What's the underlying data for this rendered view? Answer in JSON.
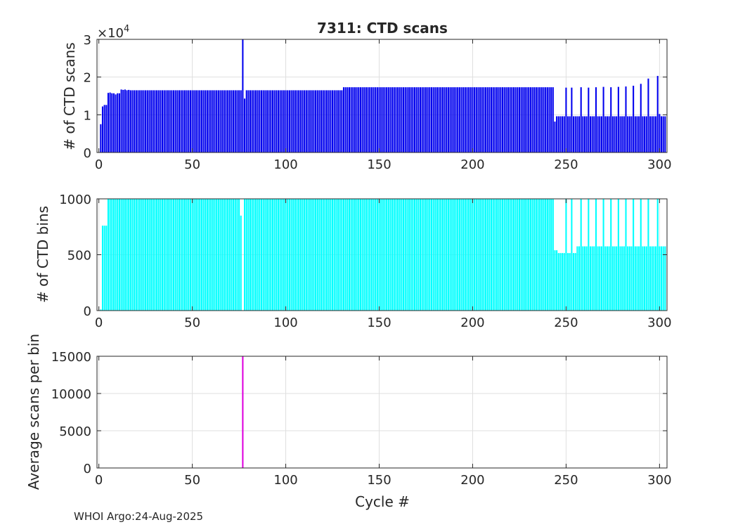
{
  "figure": {
    "title": "7311: CTD scans",
    "footer": "WHOI Argo:24-Aug-2025"
  },
  "chart_data": [
    {
      "type": "bar",
      "title": "7311: CTD scans",
      "xlabel": "",
      "ylabel": "# of CTD scans",
      "xlim": [
        -1,
        304
      ],
      "ylim": [
        0,
        30000
      ],
      "xticks": [
        0,
        50,
        100,
        150,
        200,
        250,
        300
      ],
      "yticks": [
        0,
        10000,
        20000,
        30000
      ],
      "ytick_labels": [
        "0",
        "1",
        "2",
        "3"
      ],
      "y_exponent": "4",
      "color": "#0000ee",
      "grid": true,
      "segments": [
        {
          "range": [
            1,
            1
          ],
          "value": 7500
        },
        {
          "range": [
            2,
            2
          ],
          "value": 12200
        },
        {
          "range": [
            3,
            4
          ],
          "value": 12600
        },
        {
          "range": [
            5,
            6
          ],
          "value": 15900
        },
        {
          "range": [
            7,
            11
          ],
          "value": 15700
        },
        {
          "range": [
            12,
            14
          ],
          "value": 16700
        },
        {
          "range": [
            15,
            76
          ],
          "value": 16500
        },
        {
          "range": [
            77,
            77
          ],
          "value": 30000
        },
        {
          "range": [
            78,
            78
          ],
          "value": 14300
        },
        {
          "range": [
            79,
            130
          ],
          "value": 16500
        },
        {
          "range": [
            131,
            243
          ],
          "value": 17300
        },
        {
          "range": [
            244,
            244
          ],
          "value": 8200
        },
        {
          "range": [
            245,
            303
          ],
          "value": 9600
        }
      ],
      "overrides": [
        [
          5,
          15800
        ],
        [
          9,
          15400
        ],
        [
          13,
          16600
        ],
        [
          16,
          16600
        ],
        [
          250,
          17200
        ],
        [
          253,
          17200
        ],
        [
          258,
          17300
        ],
        [
          262,
          17200
        ],
        [
          266,
          17300
        ],
        [
          270,
          17400
        ],
        [
          274,
          17300
        ],
        [
          278,
          17400
        ],
        [
          282,
          17500
        ],
        [
          286,
          17700
        ],
        [
          290,
          18200
        ],
        [
          294,
          19600
        ],
        [
          299,
          20300
        ],
        [
          300,
          10200
        ]
      ]
    },
    {
      "type": "bar",
      "title": "",
      "xlabel": "",
      "ylabel": "# of CTD bins",
      "xlim": [
        -1,
        304
      ],
      "ylim": [
        0,
        1000
      ],
      "xticks": [
        0,
        50,
        100,
        150,
        200,
        250,
        300
      ],
      "yticks": [
        0,
        500,
        1000
      ],
      "ytick_labels": [
        "0",
        "500",
        "1000"
      ],
      "color": "#00ffff",
      "grid": true,
      "segments": [
        {
          "range": [
            1,
            1
          ],
          "value": 10
        },
        {
          "range": [
            2,
            4
          ],
          "value": 760
        },
        {
          "range": [
            5,
            75
          ],
          "value": 1000
        },
        {
          "range": [
            76,
            76
          ],
          "value": 850
        },
        {
          "range": [
            77,
            77
          ],
          "value": 2
        },
        {
          "range": [
            78,
            243
          ],
          "value": 1000
        },
        {
          "range": [
            244,
            245
          ],
          "value": 540
        },
        {
          "range": [
            246,
            255
          ],
          "value": 515
        },
        {
          "range": [
            256,
            303
          ],
          "value": 575
        }
      ],
      "overrides": [
        [
          250,
          1000
        ],
        [
          253,
          1000
        ],
        [
          258,
          1000
        ],
        [
          262,
          1000
        ],
        [
          266,
          1000
        ],
        [
          270,
          1000
        ],
        [
          274,
          1000
        ],
        [
          278,
          1000
        ],
        [
          282,
          1000
        ],
        [
          286,
          1000
        ],
        [
          290,
          1000
        ],
        [
          294,
          1000
        ],
        [
          299,
          1000
        ]
      ]
    },
    {
      "type": "bar",
      "title": "",
      "xlabel": "Cycle #",
      "ylabel": "Average scans per bin",
      "xlim": [
        -1,
        304
      ],
      "ylim": [
        0,
        15000
      ],
      "xticks": [
        0,
        50,
        100,
        150,
        200,
        250,
        300
      ],
      "yticks": [
        0,
        5000,
        10000,
        15000
      ],
      "ytick_labels": [
        "0",
        "5000",
        "10000",
        "15000"
      ],
      "color": "#dd00dd",
      "grid": true,
      "segments": [
        {
          "range": [
            1,
            76
          ],
          "value": 16
        },
        {
          "range": [
            77,
            77
          ],
          "value": 15000
        },
        {
          "range": [
            78,
            303
          ],
          "value": 17
        }
      ],
      "overrides": []
    }
  ]
}
